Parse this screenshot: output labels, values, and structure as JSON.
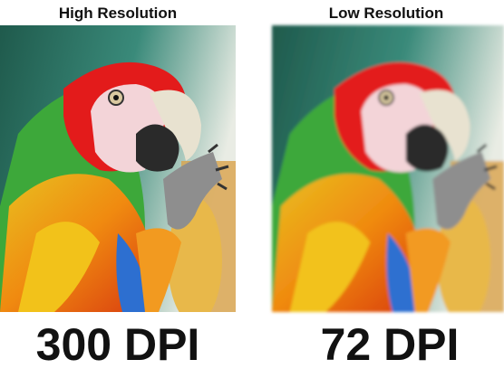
{
  "panels": [
    {
      "heading": "High Resolution",
      "caption": "300 DPI"
    },
    {
      "heading": "Low Resolution",
      "caption": "72 DPI"
    }
  ]
}
